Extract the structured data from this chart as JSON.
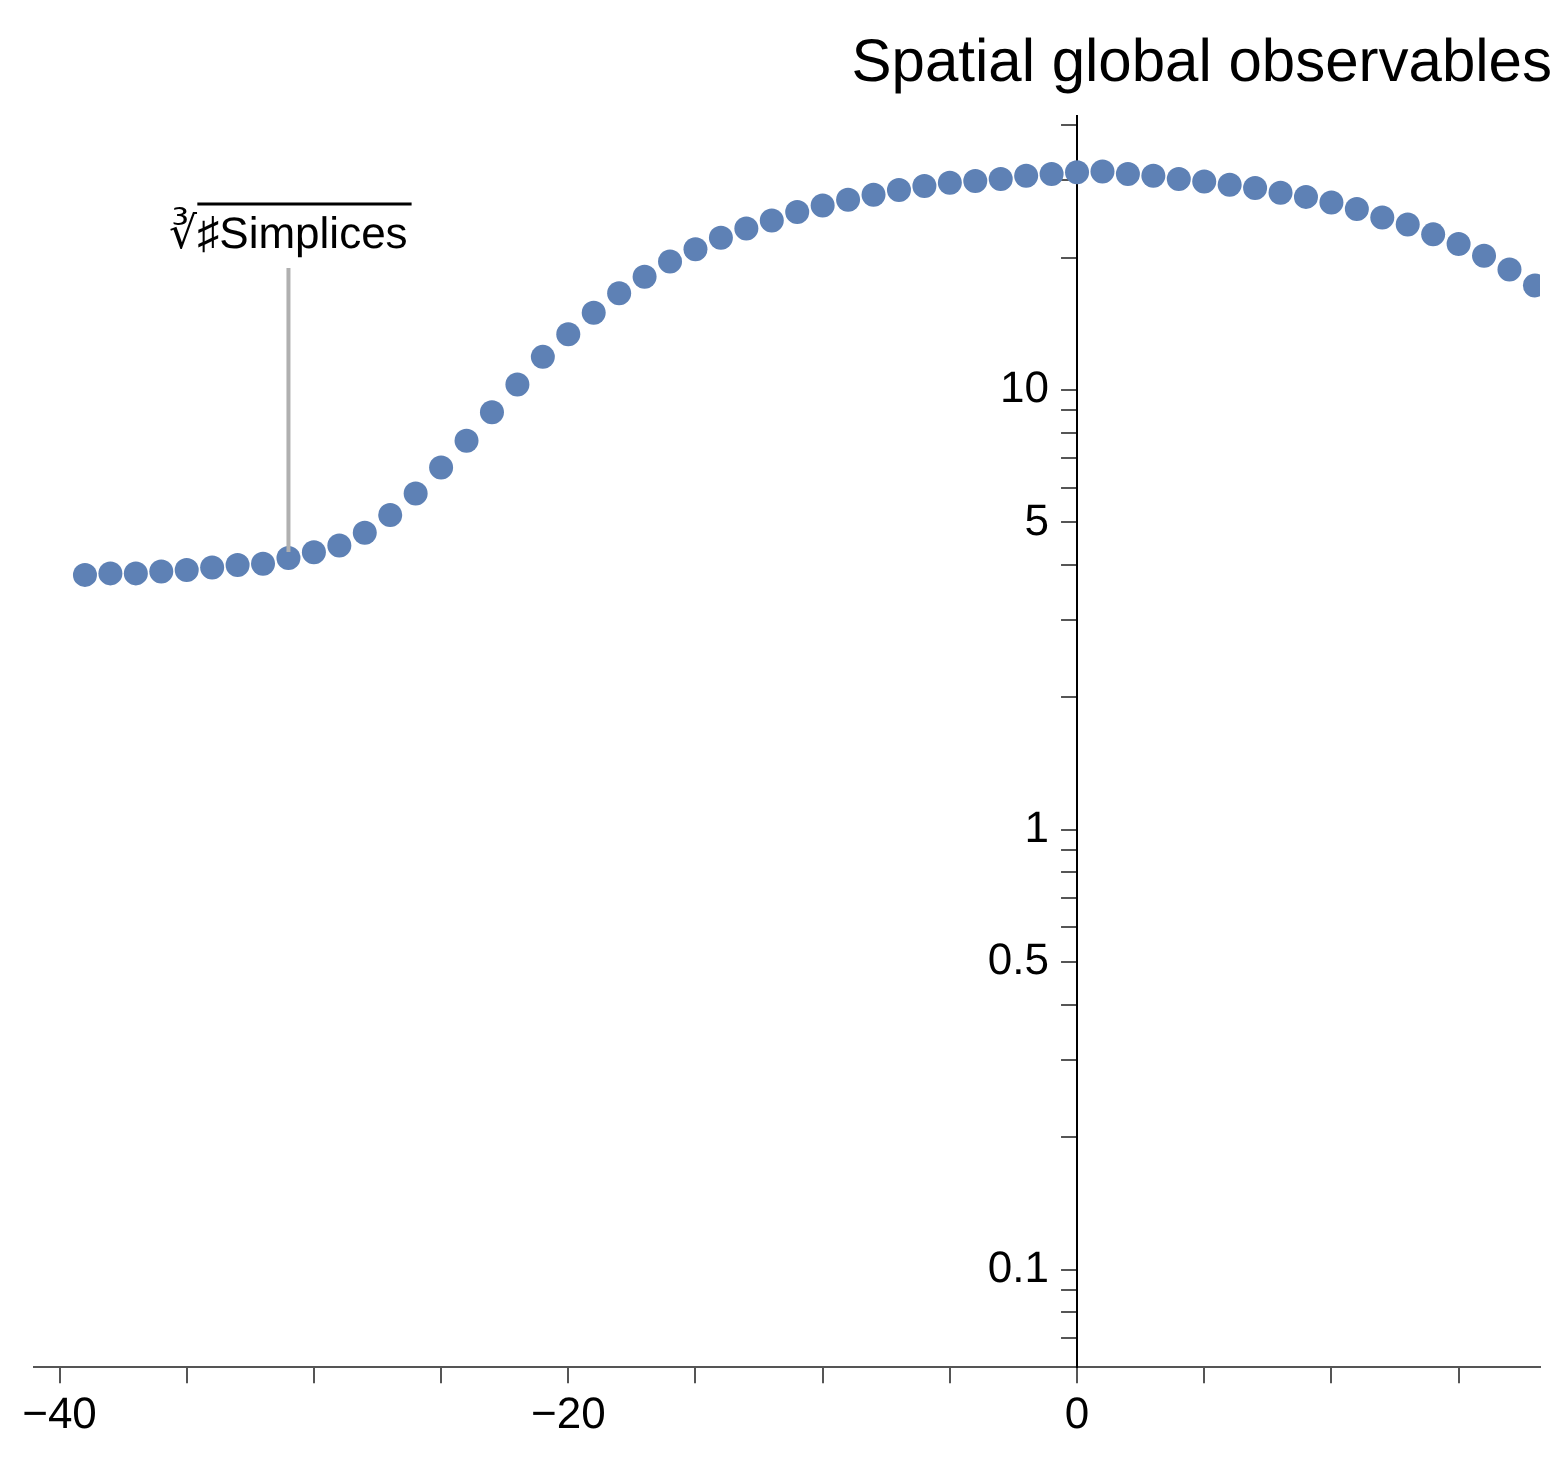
{
  "chart_data": {
    "type": "scatter",
    "title": "Spatial global observables",
    "x": [
      -39,
      -38,
      -37,
      -36,
      -35,
      -34,
      -33,
      -32,
      -31,
      -30,
      -29,
      -28,
      -27,
      -26,
      -25,
      -24,
      -23,
      -22,
      -21,
      -20,
      -19,
      -18,
      -17,
      -16,
      -15,
      -14,
      -13,
      -12,
      -11,
      -10,
      -9,
      -8,
      -7,
      -6,
      -5,
      -4,
      -3,
      -2,
      -1,
      0,
      1,
      2,
      3,
      4,
      5,
      6,
      7,
      8,
      9,
      10,
      11,
      12,
      13,
      14,
      15,
      16,
      17,
      18
    ],
    "series": [
      {
        "color": "#5e81b5",
        "values": [
          3.8,
          3.83,
          3.83,
          3.87,
          3.9,
          3.95,
          4.0,
          4.03,
          4.15,
          4.28,
          4.43,
          4.74,
          5.2,
          5.82,
          6.67,
          7.67,
          8.9,
          10.3,
          11.9,
          13.4,
          15.0,
          16.6,
          18.1,
          19.6,
          20.9,
          22.2,
          23.3,
          24.3,
          25.4,
          26.3,
          27.1,
          27.8,
          28.5,
          29.1,
          29.6,
          29.9,
          30.2,
          30.7,
          31.0,
          31.3,
          31.4,
          31.0,
          30.7,
          30.2,
          29.8,
          29.3,
          28.8,
          28.1,
          27.5,
          26.7,
          25.8,
          24.7,
          23.8,
          22.6,
          21.5,
          20.2,
          18.8,
          17.3
        ]
      }
    ],
    "annotations": [
      {
        "text": "∛♯Simplices",
        "x": -31,
        "y": 4.15
      }
    ],
    "log": "y",
    "marker": "circle",
    "grid": false,
    "legend": false,
    "xlim": [
      -41,
      18.2
    ],
    "xticks": [
      {
        "value": -40,
        "label": "−40"
      },
      {
        "value": -35,
        "label": null
      },
      {
        "value": -30,
        "label": null
      },
      {
        "value": -25,
        "label": null
      },
      {
        "value": -20,
        "label": "−20"
      },
      {
        "value": -15,
        "label": null
      },
      {
        "value": -10,
        "label": null
      },
      {
        "value": -5,
        "label": null
      },
      0,
      {
        "value": 5,
        "label": null
      },
      {
        "value": 10,
        "label": null
      },
      {
        "value": 15,
        "label": null
      }
    ],
    "ylim": [
      0.06,
      42
    ],
    "yticks": [
      {
        "value": 0.07,
        "label": null
      },
      {
        "value": 0.08,
        "label": null
      },
      {
        "value": 0.09,
        "label": null
      },
      0.1,
      {
        "value": 0.2,
        "label": null
      },
      {
        "value": 0.3,
        "label": null
      },
      {
        "value": 0.4,
        "label": null
      },
      0.5,
      {
        "value": 0.6,
        "label": null
      },
      {
        "value": 0.7,
        "label": null
      },
      {
        "value": 0.8,
        "label": null
      },
      {
        "value": 0.9,
        "label": null
      },
      1,
      {
        "value": 2,
        "label": null
      },
      {
        "value": 3,
        "label": null
      },
      {
        "value": 4,
        "label": null
      },
      5,
      {
        "value": 6,
        "label": null
      },
      {
        "value": 7,
        "label": null
      },
      {
        "value": 8,
        "label": null
      },
      {
        "value": 9,
        "label": null
      },
      10,
      {
        "value": 20,
        "label": null
      },
      {
        "value": 30,
        "label": null
      },
      {
        "value": 40,
        "label": null
      }
    ]
  }
}
